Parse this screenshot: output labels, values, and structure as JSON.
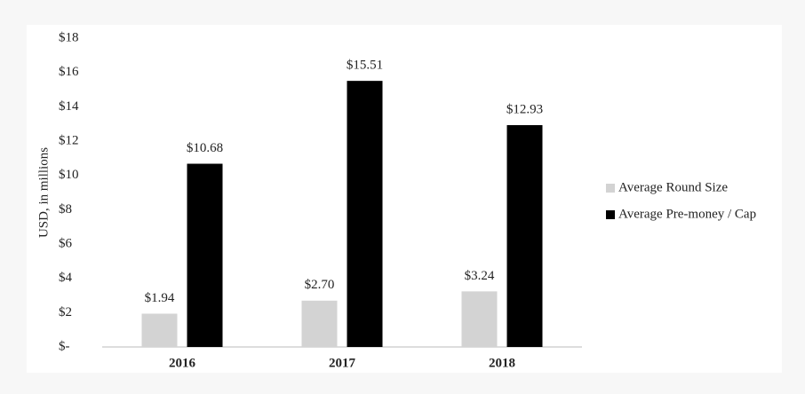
{
  "chart_data": {
    "type": "bar",
    "y_label": "USD, in millions",
    "categories": [
      "2016",
      "2017",
      "2018"
    ],
    "series": [
      {
        "name": "Average Round Size",
        "color": "#d3d3d3",
        "values": [
          1.94,
          2.7,
          3.24
        ],
        "value_labels": [
          "$1.94",
          "$2.70",
          "$3.24"
        ]
      },
      {
        "name": "Average Pre-money / Cap",
        "color": "#000000",
        "values": [
          10.68,
          15.51,
          12.93
        ],
        "value_labels": [
          "$10.68",
          "$15.51",
          "$12.93"
        ]
      }
    ],
    "ylim": [
      0,
      18
    ],
    "yticks": [
      {
        "value": 0,
        "label": "$-"
      },
      {
        "value": 2,
        "label": "$2"
      },
      {
        "value": 4,
        "label": "$4"
      },
      {
        "value": 6,
        "label": "$6"
      },
      {
        "value": 8,
        "label": "$8"
      },
      {
        "value": 10,
        "label": "$10"
      },
      {
        "value": 12,
        "label": "$12"
      },
      {
        "value": 14,
        "label": "$14"
      },
      {
        "value": 16,
        "label": "$16"
      },
      {
        "value": 18,
        "label": "$18"
      }
    ],
    "grid": false,
    "legend": "right"
  }
}
